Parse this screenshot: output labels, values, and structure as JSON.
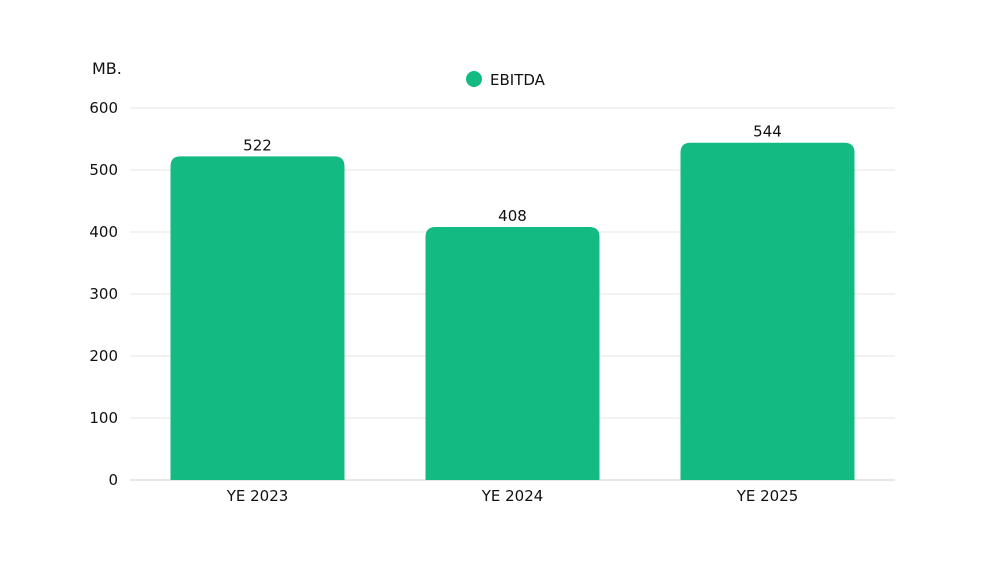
{
  "chart_data": {
    "type": "bar",
    "title": "",
    "xlabel": "",
    "ylabel": "MB.",
    "categories": [
      "YE 2023",
      "YE 2024",
      "YE 2025"
    ],
    "series": [
      {
        "name": "EBITDA",
        "values": [
          522,
          408,
          544
        ],
        "color": "#13bb82"
      }
    ],
    "data_labels": [
      "522",
      "408",
      "544"
    ],
    "y_ticks": [
      0,
      100,
      200,
      300,
      400,
      500,
      600
    ],
    "ylim": [
      0,
      600
    ],
    "grid": true,
    "legend_position": "top-center",
    "colors": {
      "bar": "#13bb82",
      "grid": "#e6e6e6",
      "axis": "#cfcfcf",
      "text": "#111111"
    }
  }
}
